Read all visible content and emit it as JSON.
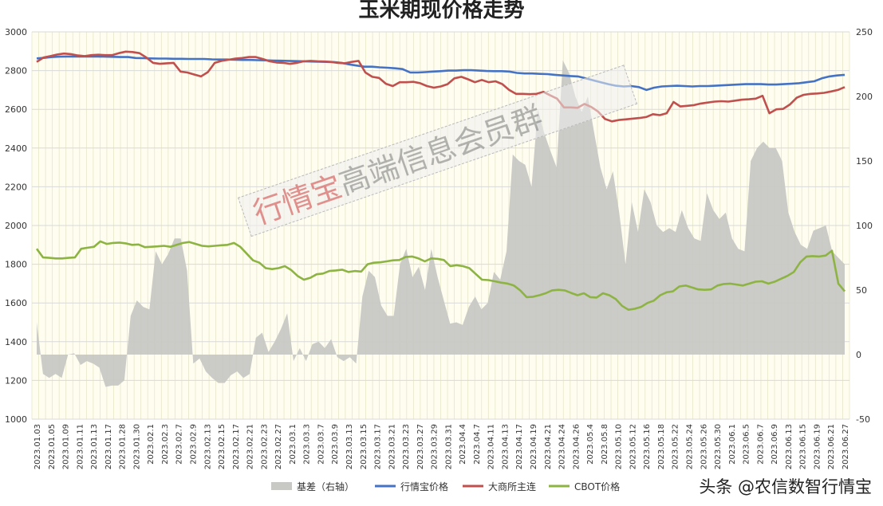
{
  "chart_data": {
    "type": "line",
    "title": "玉米期现价格走势",
    "x_ticks": [
      "2023.01.03",
      "2023.01.05",
      "2023.01.09",
      "2023.01.11",
      "2023.01.13",
      "2023.01.17",
      "2023.01.28",
      "2023.01.30",
      "2023.02.1",
      "2023.02.3",
      "2023.02.7",
      "2023.02.9",
      "2023.02.13",
      "2023.02.15",
      "2023.02.17",
      "2023.02.21",
      "2023.02.23",
      "2023.02.27",
      "2023.03.1",
      "2023.03.3",
      "2023.03.7",
      "2023.03.9",
      "2023.03.13",
      "2023.03.15",
      "2023.03.17",
      "2023.03.21",
      "2023.03.23",
      "2023.03.27",
      "2023.03.29",
      "2023.03.31",
      "2023.04.4",
      "2023.04.7",
      "2023.04.11",
      "2023.04.13",
      "2023.04.17",
      "2023.04.19",
      "2023.04.21",
      "2023.04.24",
      "2023.04.26",
      "2023.05.4",
      "2023.05.8",
      "2023.05.10",
      "2023.05.12",
      "2023.05.16",
      "2023.05.18",
      "2023.05.22",
      "2023.05.24",
      "2023.05.26",
      "2023.05.30",
      "2023.06.1",
      "2023.06.5",
      "2023.06.7",
      "2023.06.9",
      "2023.06.13",
      "2023.06.15",
      "2023.06.19",
      "2023.06.21",
      "2023.06.27"
    ],
    "y_left": {
      "min": 1000,
      "max": 3000,
      "step": 200
    },
    "y_right": {
      "min": -50,
      "max": 250,
      "step": 50
    },
    "legend_position": "bottom",
    "grid": true,
    "series": [
      {
        "name": "基差（右轴）",
        "type": "area",
        "axis": "right",
        "color": "#c8c8c4",
        "values": [
          25,
          -15,
          -18,
          -15,
          -18,
          0,
          1,
          -8,
          -5,
          -7,
          -10,
          -25,
          -24,
          -24,
          -20,
          30,
          42,
          37,
          35,
          80,
          70,
          78,
          90,
          90,
          65,
          -7,
          -3,
          -13,
          -18,
          -22,
          -22,
          -16,
          -13,
          -18,
          -15,
          13,
          17,
          2,
          10,
          20,
          32,
          -5,
          5,
          -5,
          8,
          10,
          5,
          12,
          -2,
          -5,
          -2,
          -7,
          45,
          65,
          60,
          38,
          30,
          30,
          70,
          82,
          60,
          68,
          50,
          82,
          60,
          42,
          24,
          25,
          23,
          37,
          45,
          35,
          40,
          64,
          58,
          80,
          155,
          150,
          147,
          130,
          190,
          172,
          158,
          145,
          228,
          218,
          200,
          188,
          200,
          172,
          145,
          128,
          142,
          110,
          70,
          118,
          95,
          128,
          118,
          100,
          95,
          98,
          95,
          112,
          98,
          90,
          88,
          125,
          112,
          105,
          110,
          90,
          82,
          80,
          150,
          160,
          165,
          160,
          160,
          150,
          110,
          95,
          85,
          82,
          96,
          98,
          100,
          80,
          75,
          70
        ],
        "_note": ""
      },
      {
        "name": "行情宝价格",
        "type": "line",
        "axis": "left",
        "color": "#4472c4",
        "values": [
          2863,
          2866,
          2870,
          2872,
          2873,
          2873,
          2873,
          2873,
          2873,
          2872,
          2871,
          2870,
          2870,
          2865,
          2864,
          2863,
          2862,
          2862,
          2861,
          2861,
          2860,
          2860,
          2860,
          2858,
          2857,
          2857,
          2856,
          2855,
          2855,
          2854,
          2853,
          2852,
          2851,
          2850,
          2849,
          2848,
          2847,
          2846,
          2845,
          2844,
          2840,
          2832,
          2826,
          2820,
          2820,
          2817,
          2815,
          2812,
          2808,
          2790,
          2790,
          2792,
          2795,
          2797,
          2800,
          2800,
          2802,
          2802,
          2800,
          2798,
          2797,
          2797,
          2795,
          2788,
          2785,
          2785,
          2783,
          2782,
          2778,
          2775,
          2772,
          2770,
          2760,
          2750,
          2740,
          2730,
          2722,
          2718,
          2720,
          2715,
          2700,
          2712,
          2718,
          2720,
          2722,
          2720,
          2718,
          2720,
          2720,
          2722,
          2724,
          2726,
          2728,
          2730,
          2730,
          2730,
          2728,
          2728,
          2730,
          2732,
          2735,
          2740,
          2745,
          2760,
          2770,
          2775,
          2778
        ]
      },
      {
        "name": "大商所主连",
        "type": "line",
        "axis": "left",
        "color": "#c0504d",
        "values": [
          2845,
          2868,
          2875,
          2883,
          2888,
          2885,
          2878,
          2875,
          2880,
          2882,
          2880,
          2880,
          2890,
          2898,
          2896,
          2890,
          2868,
          2840,
          2835,
          2838,
          2840,
          2795,
          2790,
          2780,
          2770,
          2792,
          2840,
          2850,
          2856,
          2862,
          2865,
          2870,
          2870,
          2860,
          2848,
          2842,
          2840,
          2835,
          2840,
          2848,
          2850,
          2848,
          2847,
          2845,
          2840,
          2838,
          2845,
          2850,
          2790,
          2768,
          2762,
          2732,
          2720,
          2740,
          2740,
          2742,
          2735,
          2720,
          2712,
          2718,
          2730,
          2760,
          2768,
          2755,
          2740,
          2752,
          2740,
          2745,
          2730,
          2700,
          2680,
          2680,
          2678,
          2680,
          2690,
          2672,
          2655,
          2610,
          2610,
          2608,
          2628,
          2612,
          2588,
          2550,
          2538,
          2545,
          2548,
          2552,
          2555,
          2560,
          2575,
          2570,
          2580,
          2638,
          2615,
          2618,
          2622,
          2630,
          2635,
          2640,
          2642,
          2640,
          2645,
          2650,
          2652,
          2655,
          2670,
          2580,
          2600,
          2602,
          2625,
          2660,
          2675,
          2680,
          2682,
          2685,
          2692,
          2700,
          2715
        ]
      },
      {
        "name": "CBOT价格",
        "type": "line",
        "axis": "left",
        "color": "#8db443",
        "values": [
          1880,
          1835,
          1833,
          1830,
          1830,
          1833,
          1835,
          1880,
          1885,
          1890,
          1918,
          1905,
          1910,
          1912,
          1908,
          1900,
          1902,
          1888,
          1890,
          1892,
          1895,
          1890,
          1900,
          1910,
          1915,
          1905,
          1895,
          1892,
          1895,
          1898,
          1900,
          1910,
          1890,
          1855,
          1820,
          1808,
          1780,
          1775,
          1780,
          1790,
          1770,
          1740,
          1720,
          1730,
          1748,
          1752,
          1765,
          1768,
          1772,
          1760,
          1765,
          1762,
          1800,
          1808,
          1810,
          1815,
          1820,
          1822,
          1838,
          1840,
          1830,
          1815,
          1830,
          1828,
          1822,
          1790,
          1795,
          1790,
          1780,
          1750,
          1720,
          1718,
          1712,
          1705,
          1700,
          1690,
          1665,
          1630,
          1632,
          1640,
          1650,
          1665,
          1668,
          1665,
          1652,
          1640,
          1650,
          1630,
          1628,
          1650,
          1640,
          1620,
          1585,
          1565,
          1570,
          1580,
          1600,
          1612,
          1640,
          1655,
          1660,
          1685,
          1690,
          1680,
          1670,
          1668,
          1670,
          1690,
          1698,
          1700,
          1695,
          1690,
          1700,
          1710,
          1712,
          1700,
          1710,
          1725,
          1740,
          1760,
          1810,
          1840,
          1842,
          1840,
          1845,
          1870,
          1700,
          1660
        ]
      }
    ]
  },
  "watermark": {
    "red_text": "行情宝",
    "gray_text": "高端信息会员群"
  },
  "credit": "头条 @农信数智行情宝"
}
